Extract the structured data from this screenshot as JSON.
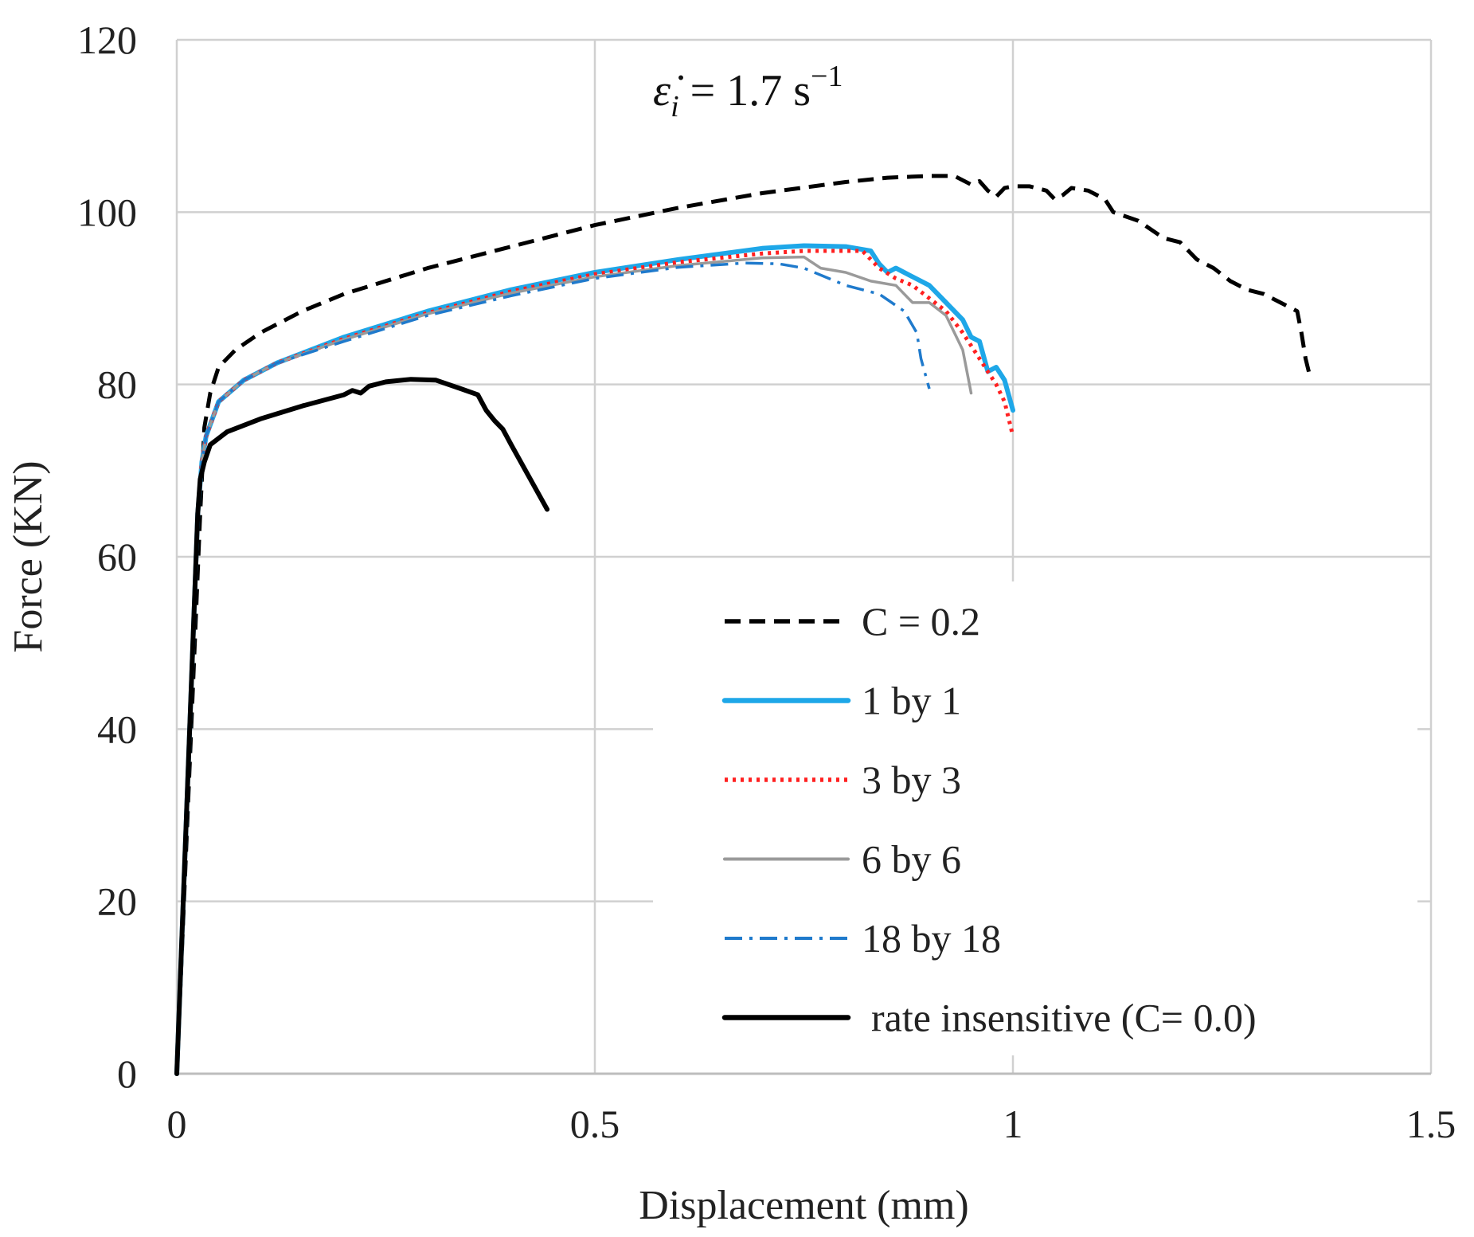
{
  "chart_data": {
    "type": "line",
    "title": "",
    "annotation": {
      "symbol": "ε̇",
      "subscript": "i",
      "text": " = 1.7 s",
      "superscript": "−1"
    },
    "xlabel": "Displacement (mm)",
    "ylabel": "Force (KN)",
    "xlim": [
      0,
      1.5
    ],
    "ylim": [
      0,
      120
    ],
    "x_ticks": [
      0,
      0.5,
      1,
      1.5
    ],
    "x_tick_labels": [
      "0",
      "0.5",
      "1",
      "1.5"
    ],
    "y_ticks": [
      0,
      20,
      40,
      60,
      80,
      100,
      120
    ],
    "y_tick_labels": [
      "0",
      "20",
      "40",
      "60",
      "80",
      "100",
      "120"
    ],
    "grid": true,
    "legend_position": "center-right",
    "series": [
      {
        "name": "C = 0.2",
        "color": "#000000",
        "style": "dashed",
        "points": [
          [
            0,
            0
          ],
          [
            0.028,
            65
          ],
          [
            0.033,
            75
          ],
          [
            0.04,
            79
          ],
          [
            0.05,
            82
          ],
          [
            0.07,
            84
          ],
          [
            0.1,
            86
          ],
          [
            0.15,
            88.5
          ],
          [
            0.2,
            90.5
          ],
          [
            0.3,
            93.5
          ],
          [
            0.4,
            96
          ],
          [
            0.5,
            98.5
          ],
          [
            0.6,
            100.5
          ],
          [
            0.7,
            102.2
          ],
          [
            0.8,
            103.5
          ],
          [
            0.85,
            104
          ],
          [
            0.9,
            104.2
          ],
          [
            0.93,
            104.2
          ],
          [
            0.95,
            103.2
          ],
          [
            0.96,
            103.6
          ],
          [
            0.97,
            102.5
          ],
          [
            0.98,
            101.8
          ],
          [
            0.99,
            102.8
          ],
          [
            1.0,
            103
          ],
          [
            1.02,
            103
          ],
          [
            1.04,
            102.5
          ],
          [
            1.05,
            101.5
          ],
          [
            1.06,
            102
          ],
          [
            1.07,
            102.8
          ],
          [
            1.09,
            102.5
          ],
          [
            1.11,
            101.5
          ],
          [
            1.12,
            100
          ],
          [
            1.15,
            99
          ],
          [
            1.18,
            97
          ],
          [
            1.2,
            96.5
          ],
          [
            1.22,
            94.5
          ],
          [
            1.24,
            93.5
          ],
          [
            1.26,
            92
          ],
          [
            1.28,
            91
          ],
          [
            1.3,
            90.5
          ],
          [
            1.32,
            89.5
          ],
          [
            1.34,
            88.5
          ],
          [
            1.345,
            86
          ],
          [
            1.35,
            83
          ],
          [
            1.355,
            81
          ]
        ]
      },
      {
        "name": "1 by 1",
        "color": "#1EA7E8",
        "style": "solid",
        "points": [
          [
            0,
            0
          ],
          [
            0.025,
            65
          ],
          [
            0.03,
            71
          ],
          [
            0.035,
            74
          ],
          [
            0.05,
            78
          ],
          [
            0.08,
            80.5
          ],
          [
            0.12,
            82.5
          ],
          [
            0.2,
            85.5
          ],
          [
            0.3,
            88.5
          ],
          [
            0.4,
            91
          ],
          [
            0.5,
            93
          ],
          [
            0.6,
            94.5
          ],
          [
            0.7,
            95.8
          ],
          [
            0.75,
            96.1
          ],
          [
            0.8,
            96
          ],
          [
            0.83,
            95.5
          ],
          [
            0.84,
            94
          ],
          [
            0.85,
            93
          ],
          [
            0.86,
            93.5
          ],
          [
            0.88,
            92.5
          ],
          [
            0.9,
            91.5
          ],
          [
            0.92,
            89.5
          ],
          [
            0.94,
            87.5
          ],
          [
            0.95,
            85.5
          ],
          [
            0.96,
            85
          ],
          [
            0.97,
            81.5
          ],
          [
            0.98,
            82
          ],
          [
            0.99,
            80.5
          ],
          [
            1.0,
            77
          ]
        ]
      },
      {
        "name": "3 by 3",
        "color": "#FF2020",
        "style": "dotted",
        "points": [
          [
            0,
            0
          ],
          [
            0.025,
            65
          ],
          [
            0.03,
            71
          ],
          [
            0.035,
            74
          ],
          [
            0.05,
            78
          ],
          [
            0.08,
            80.5
          ],
          [
            0.12,
            82.5
          ],
          [
            0.2,
            85.3
          ],
          [
            0.3,
            88.3
          ],
          [
            0.4,
            90.8
          ],
          [
            0.5,
            92.8
          ],
          [
            0.6,
            94.2
          ],
          [
            0.7,
            95.2
          ],
          [
            0.75,
            95.5
          ],
          [
            0.8,
            95.5
          ],
          [
            0.82,
            95.5
          ],
          [
            0.84,
            93.5
          ],
          [
            0.86,
            92.3
          ],
          [
            0.88,
            91.5
          ],
          [
            0.9,
            90
          ],
          [
            0.92,
            88.5
          ],
          [
            0.94,
            86
          ],
          [
            0.96,
            83
          ],
          [
            0.98,
            80
          ],
          [
            0.99,
            78
          ],
          [
            1.0,
            74
          ]
        ]
      },
      {
        "name": "6 by 6",
        "color": "#9A9A9A",
        "style": "solid",
        "points": [
          [
            0,
            0
          ],
          [
            0.025,
            65
          ],
          [
            0.03,
            71
          ],
          [
            0.035,
            74
          ],
          [
            0.05,
            78
          ],
          [
            0.08,
            80.5
          ],
          [
            0.12,
            82.5
          ],
          [
            0.2,
            85.2
          ],
          [
            0.3,
            88.2
          ],
          [
            0.4,
            90.6
          ],
          [
            0.5,
            92.5
          ],
          [
            0.6,
            93.8
          ],
          [
            0.7,
            94.7
          ],
          [
            0.75,
            94.8
          ],
          [
            0.77,
            93.5
          ],
          [
            0.8,
            93
          ],
          [
            0.83,
            92
          ],
          [
            0.86,
            91.5
          ],
          [
            0.88,
            89.5
          ],
          [
            0.9,
            89.5
          ],
          [
            0.92,
            88
          ],
          [
            0.93,
            86
          ],
          [
            0.94,
            84
          ],
          [
            0.95,
            79
          ]
        ]
      },
      {
        "name": "18 by 18",
        "color": "#1F7ACC",
        "style": "dashdot",
        "points": [
          [
            0,
            0
          ],
          [
            0.025,
            65
          ],
          [
            0.03,
            71
          ],
          [
            0.035,
            74
          ],
          [
            0.05,
            78
          ],
          [
            0.08,
            80.5
          ],
          [
            0.12,
            82.5
          ],
          [
            0.2,
            85
          ],
          [
            0.3,
            88
          ],
          [
            0.4,
            90.3
          ],
          [
            0.5,
            92.3
          ],
          [
            0.6,
            93.6
          ],
          [
            0.68,
            94.1
          ],
          [
            0.72,
            94
          ],
          [
            0.75,
            93.5
          ],
          [
            0.8,
            91.5
          ],
          [
            0.84,
            90.5
          ],
          [
            0.87,
            88.5
          ],
          [
            0.885,
            86
          ],
          [
            0.89,
            83
          ],
          [
            0.9,
            79.5
          ]
        ]
      },
      {
        "name": "rate insensitive (C= 0.0)",
        "color": "#000000",
        "style": "solid-bold",
        "points": [
          [
            0,
            0
          ],
          [
            0.025,
            65
          ],
          [
            0.028,
            69
          ],
          [
            0.033,
            71
          ],
          [
            0.04,
            73
          ],
          [
            0.06,
            74.5
          ],
          [
            0.1,
            76
          ],
          [
            0.15,
            77.5
          ],
          [
            0.2,
            78.8
          ],
          [
            0.21,
            79.3
          ],
          [
            0.22,
            79
          ],
          [
            0.23,
            79.8
          ],
          [
            0.25,
            80.3
          ],
          [
            0.28,
            80.6
          ],
          [
            0.31,
            80.5
          ],
          [
            0.34,
            79.5
          ],
          [
            0.36,
            78.8
          ],
          [
            0.37,
            77
          ],
          [
            0.38,
            75.8
          ],
          [
            0.39,
            74.8
          ],
          [
            0.4,
            73
          ],
          [
            0.42,
            69.5
          ],
          [
            0.443,
            65.5
          ]
        ]
      }
    ]
  }
}
